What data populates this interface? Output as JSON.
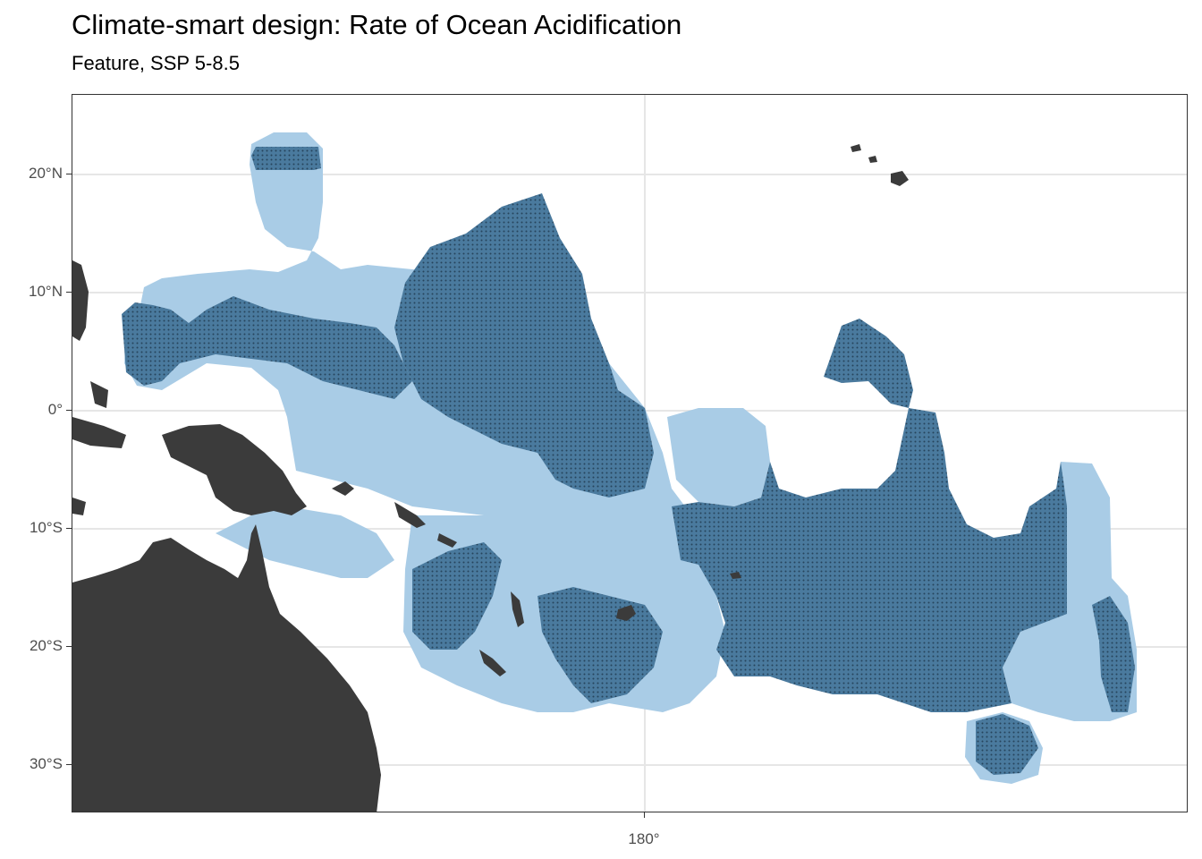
{
  "title": "Climate-smart design: Rate of Ocean Acidification",
  "subtitle": "Feature, SSP 5-8.5",
  "axes": {
    "y_ticks": [
      {
        "label": "20°N",
        "lat": 20
      },
      {
        "label": "10°N",
        "lat": 10
      },
      {
        "label": "0°",
        "lat": 0
      },
      {
        "label": "10°S",
        "lat": -10
      },
      {
        "label": "20°S",
        "lat": -20
      },
      {
        "label": "30°S",
        "lat": -30
      }
    ],
    "x_ticks": [
      {
        "label": "180°",
        "lon": 180
      }
    ]
  },
  "colors": {
    "land": "#3b3b3b",
    "planning_region": "#a9cce6",
    "selected": "#4a7a9e",
    "grid": "#e6e6e6",
    "border": "#333333"
  }
}
